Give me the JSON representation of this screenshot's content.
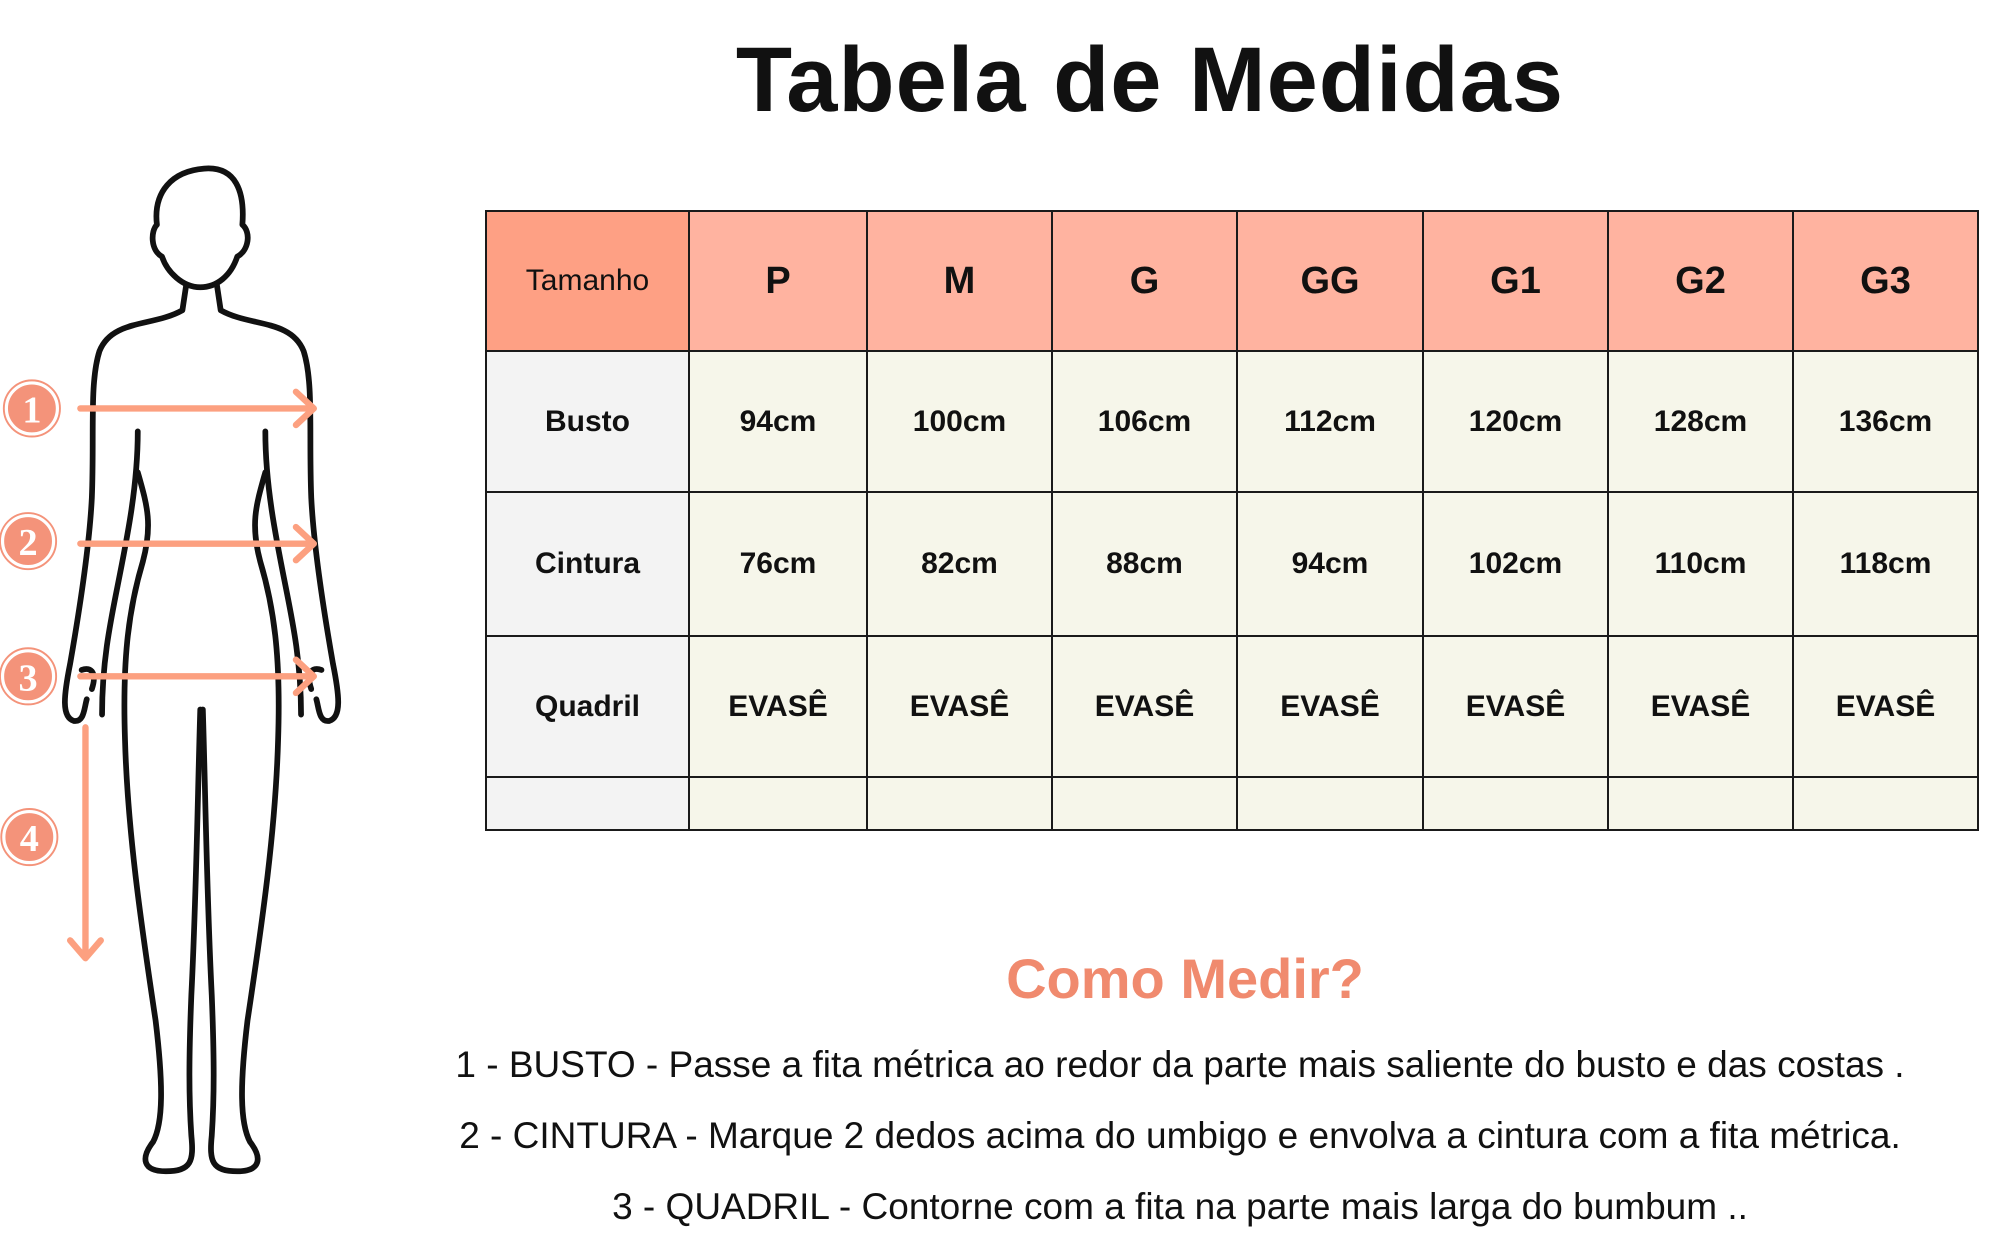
{
  "title": "Tabela de Medidas",
  "colors": {
    "accent": "#f08a6e",
    "header_corner": "#fea084",
    "header": "#ffb3a0",
    "row_label": "#f3f3f3",
    "cell": "#f6f6ea"
  },
  "figure": {
    "markers": [
      "1",
      "2",
      "3",
      "4"
    ]
  },
  "table": {
    "corner": "Tamanho",
    "sizes": [
      "P",
      "M",
      "G",
      "GG",
      "G1",
      "G2",
      "G3"
    ],
    "rows": [
      {
        "label": "Busto",
        "values": [
          "94cm",
          "100cm",
          "106cm",
          "112cm",
          "120cm",
          "128cm",
          "136cm"
        ]
      },
      {
        "label": "Cintura",
        "values": [
          "76cm",
          "82cm",
          "88cm",
          "94cm",
          "102cm",
          "110cm",
          "118cm"
        ]
      },
      {
        "label": "Quadril",
        "values": [
          "EVASÊ",
          "EVASÊ",
          "EVASÊ",
          "EVASÊ",
          "EVASÊ",
          "EVASÊ",
          "EVASÊ"
        ]
      },
      {
        "label": "",
        "values": [
          "",
          "",
          "",
          "",
          "",
          "",
          ""
        ]
      }
    ]
  },
  "how_to": {
    "title": "Como Medir?",
    "lines": [
      "1 - BUSTO - Passe a fita métrica ao redor da parte mais saliente do busto e das costas .",
      "2 - CINTURA - Marque 2 dedos acima do umbigo e envolva a cintura com a fita métrica.",
      "3 - QUADRIL - Contorne com a fita na parte mais larga do bumbum .."
    ]
  }
}
